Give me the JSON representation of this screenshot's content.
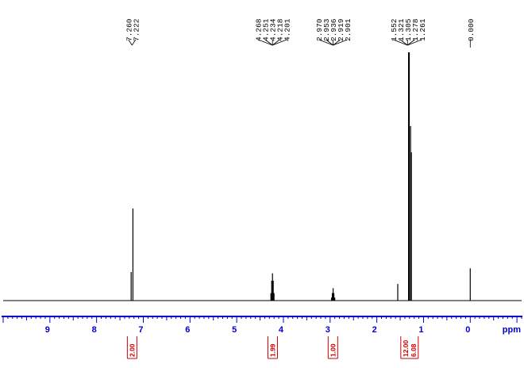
{
  "chart_data": {
    "type": "line",
    "title": "",
    "xlabel": "ppm",
    "ylabel": "",
    "xlim": [
      10.0,
      -1.1
    ],
    "x_reversed": true,
    "axis_color": "#0000cc",
    "trace_color": "#000000",
    "integral_color": "#cc0000",
    "x_ticks": [
      9,
      8,
      7,
      6,
      5,
      4,
      3,
      2,
      1,
      0
    ],
    "x_tick_labels": [
      "9",
      "8",
      "7",
      "6",
      "5",
      "4",
      "3",
      "2",
      "1",
      "0"
    ],
    "peak_groups": [
      {
        "labels": [
          "7.260",
          "7.222"
        ],
        "shifts": [
          7.26,
          7.222
        ]
      },
      {
        "labels": [
          "4.268",
          "4.251",
          "4.234",
          "4.218",
          "4.201"
        ],
        "shifts": [
          4.268,
          4.251,
          4.234,
          4.218,
          4.201
        ]
      },
      {
        "labels": [
          "2.970",
          "2.953",
          "2.936",
          "2.919",
          "2.901"
        ],
        "shifts": [
          2.97,
          2.953,
          2.936,
          2.919,
          2.901
        ]
      },
      {
        "labels": [
          "1.552",
          "1.321",
          "1.305",
          "1.278",
          "1.261"
        ],
        "shifts": [
          1.552,
          1.321,
          1.305,
          1.278,
          1.261
        ]
      },
      {
        "labels": [
          "0.000"
        ],
        "shifts": [
          0.0
        ]
      }
    ],
    "peaks": [
      {
        "x": 7.26,
        "height": 0.115
      },
      {
        "x": 7.222,
        "height": 0.371
      },
      {
        "x": 4.268,
        "height": 0.03
      },
      {
        "x": 4.251,
        "height": 0.08
      },
      {
        "x": 4.234,
        "height": 0.11
      },
      {
        "x": 4.218,
        "height": 0.08
      },
      {
        "x": 4.201,
        "height": 0.03
      },
      {
        "x": 2.97,
        "height": 0.012
      },
      {
        "x": 2.953,
        "height": 0.03
      },
      {
        "x": 2.936,
        "height": 0.05
      },
      {
        "x": 2.919,
        "height": 0.03
      },
      {
        "x": 2.901,
        "height": 0.012
      },
      {
        "x": 1.552,
        "height": 0.067
      },
      {
        "x": 1.321,
        "height": 1.0
      },
      {
        "x": 1.305,
        "height": 1.0
      },
      {
        "x": 1.278,
        "height": 0.703
      },
      {
        "x": 1.261,
        "height": 0.597
      },
      {
        "x": 0.0,
        "height": 0.13
      }
    ],
    "integrals": [
      {
        "center": 7.24,
        "values": [
          "2.00"
        ]
      },
      {
        "center": 4.23,
        "values": [
          "1.99"
        ]
      },
      {
        "center": 2.94,
        "values": [
          "1.00"
        ]
      },
      {
        "center": 1.3,
        "values": [
          "12.00",
          "6.08"
        ]
      }
    ]
  }
}
